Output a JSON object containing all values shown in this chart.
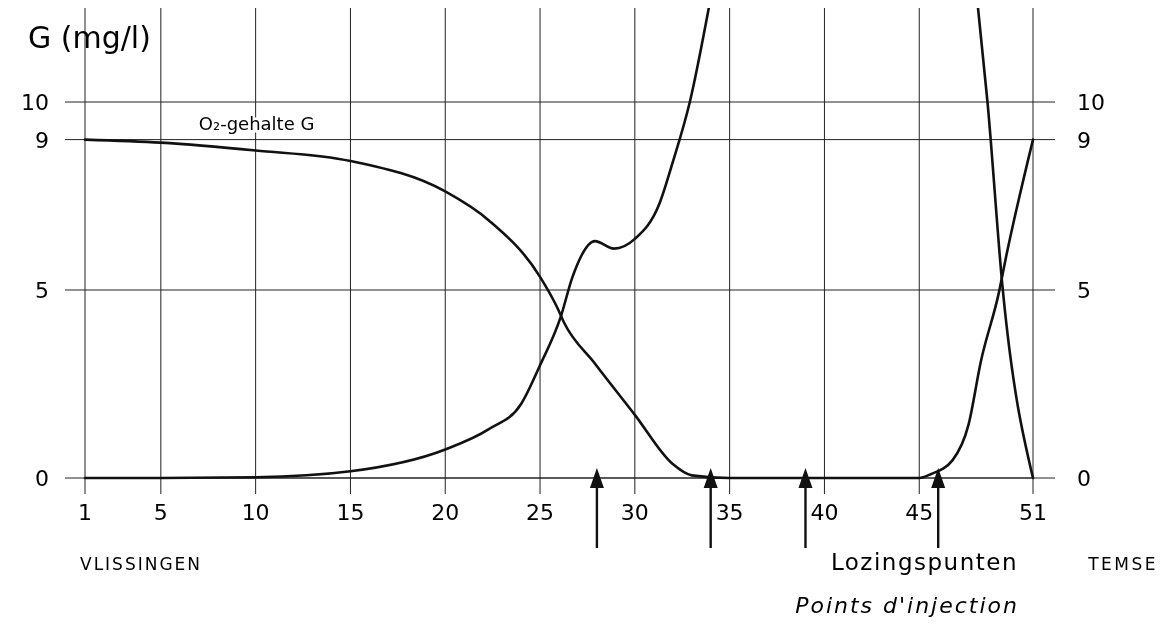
{
  "chart_data": {
    "type": "line",
    "ylabel": "G (mg/l)",
    "xlim": [
      1,
      51
    ],
    "xticks": [
      1,
      5,
      10,
      15,
      20,
      25,
      30,
      35,
      40,
      45,
      51
    ],
    "ylim": [
      0,
      12.5
    ],
    "yticks": [
      0,
      5,
      9,
      10
    ],
    "y2lim": [
      0,
      12.5
    ],
    "y2ticks": [
      0,
      5,
      9,
      10
    ],
    "grid": true,
    "marker": "none",
    "line_style": "solid",
    "series": [
      {
        "name": "O₂-gehalte G",
        "color": "#111111",
        "x": [
          1,
          5,
          10,
          15,
          20,
          22.3,
          25,
          25.9,
          26.25,
          27.9,
          30,
          32,
          33,
          35,
          40,
          45,
          45.6,
          46.75,
          47.6,
          48.25,
          49.2,
          49.6,
          51
        ],
        "values": [
          9.0,
          8.92,
          8.71,
          8.43,
          7.62,
          6.85,
          5.35,
          4.54,
          4.15,
          3.04,
          1.68,
          0.37,
          0.07,
          0,
          0,
          0,
          0.1,
          0.47,
          1.42,
          3.1,
          4.93,
          5.93,
          9.0
        ]
      },
      {
        "color": "#111111",
        "x": [
          1,
          5,
          10,
          15,
          20,
          22.3,
          24,
          25,
          26.1,
          26.7,
          27.9,
          28.9,
          30,
          31.3,
          32,
          32.9,
          33.9
        ],
        "values": [
          0,
          0,
          0.02,
          0.18,
          0.76,
          1.3,
          1.97,
          3.0,
          4.3,
          5.33,
          6.3,
          6.1,
          6.36,
          7.3,
          8.4,
          10.0,
          12.5
        ]
      },
      {
        "color": "#111111",
        "x": [
          48.1,
          48.6,
          49.4,
          51
        ],
        "values": [
          12.5,
          10,
          5.04,
          0
        ]
      },
      {
        "type": "scatter",
        "marker": "triangle",
        "color": "#111111",
        "x": [
          28,
          34,
          39,
          46
        ],
        "values": [
          0,
          0,
          0,
          0
        ]
      }
    ],
    "annotations": [
      "VLISSINGEN",
      "TEMSE",
      "Lozingspunten",
      "Points d'injection"
    ]
  }
}
